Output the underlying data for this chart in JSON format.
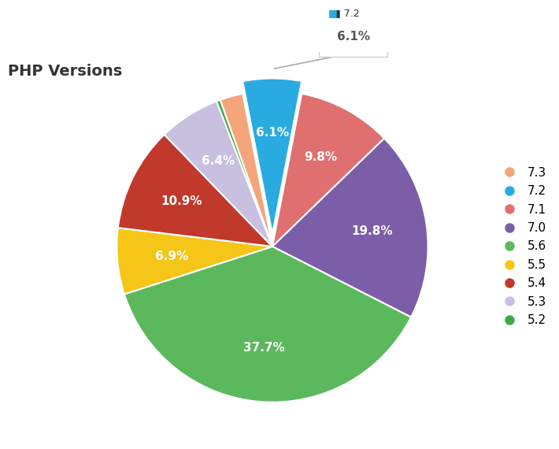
{
  "title": "PHP Versions",
  "labels": [
    "7.3",
    "7.2",
    "7.1",
    "7.0",
    "5.6",
    "5.5",
    "5.4",
    "5.3",
    "5.2"
  ],
  "values": [
    2.4,
    6.1,
    9.8,
    19.8,
    37.7,
    6.9,
    10.9,
    6.4,
    0.4
  ],
  "percentages": [
    "",
    "6.1%",
    "9.8%",
    "19.8%",
    "37.7%",
    "6.9%",
    "10.9%",
    "6.4%",
    ""
  ],
  "colors": [
    "#F4A57A",
    "#29ABE2",
    "#E07070",
    "#7B5EA7",
    "#5CB85C",
    "#F5C518",
    "#C0392B",
    "#C9C0E0",
    "#3DAA4A"
  ],
  "explode_index": 1,
  "explode_amount": 0.08,
  "background_color": "#FFFFFF",
  "title_fontsize": 14,
  "title_fontweight": "bold",
  "label_fontsize": 11,
  "legend_fontsize": 11,
  "callout_label": "7.2",
  "callout_value": "6.1%",
  "startangle": 109.62
}
